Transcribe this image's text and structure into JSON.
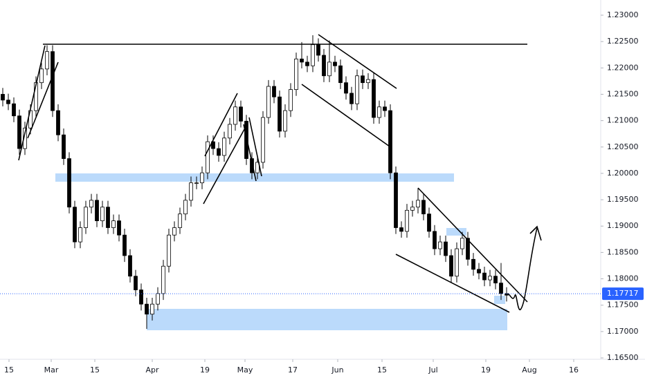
{
  "chart_data": {
    "type": "candlestick",
    "x": [
      1,
      3,
      5,
      7,
      9,
      11,
      13,
      15,
      17,
      19,
      21,
      23,
      25,
      27,
      29,
      31,
      33,
      35,
      37,
      39,
      41,
      43,
      45,
      47,
      49,
      51,
      53,
      55,
      57,
      59,
      61,
      63,
      65,
      67,
      69,
      71,
      73,
      75,
      77,
      79,
      81,
      83,
      85,
      87,
      89,
      91,
      93,
      95,
      97,
      99,
      101,
      103,
      105,
      107,
      109,
      111,
      113,
      115,
      117,
      119,
      121,
      123,
      125,
      127,
      129,
      131,
      133,
      135,
      137,
      139,
      141,
      143,
      145,
      147,
      149,
      151,
      153,
      155,
      157,
      159,
      161,
      163,
      165,
      167,
      169,
      171,
      173,
      175,
      177,
      179,
      181,
      183
    ],
    "open": [
      1.215,
      1.2139,
      1.2132,
      1.2109,
      1.2047,
      1.2086,
      1.2119,
      1.2172,
      1.2198,
      1.2231,
      1.2119,
      1.2073,
      1.2028,
      1.1936,
      1.187,
      1.1897,
      1.1936,
      1.1949,
      1.191,
      1.1936,
      1.1897,
      1.191,
      1.1883,
      1.1844,
      1.1805,
      1.1779,
      1.1752,
      1.1733,
      1.1752,
      1.1772,
      1.1824,
      1.1883,
      1.1897,
      1.1923,
      1.1949,
      1.1982,
      1.1982,
      1.2001,
      1.206,
      1.2047,
      1.2034,
      1.2067,
      1.2093,
      1.2126,
      1.2099,
      1.2028,
      1.2001,
      1.2021,
      1.2106,
      1.2165,
      1.2145,
      1.208,
      1.2119,
      1.2159,
      1.2217,
      1.2211,
      1.2204,
      1.2244,
      1.2224,
      1.2185,
      1.2211,
      1.2204,
      1.2172,
      1.2152,
      1.2132,
      1.2185,
      1.2172,
      1.2178,
      1.2106,
      1.2126,
      1.2119,
      1.2001,
      1.1897,
      1.189,
      1.193,
      1.1936,
      1.1949,
      1.1923,
      1.189,
      1.1857,
      1.187,
      1.1844,
      1.1805,
      1.1857,
      1.1877,
      1.1837,
      1.1818,
      1.1811,
      1.1798,
      1.1805,
      1.1792,
      1.1772
    ],
    "high": [
      1.2162,
      1.2151,
      1.2144,
      1.2121,
      1.2098,
      1.2131,
      1.2184,
      1.221,
      1.2243,
      1.2243,
      1.2131,
      1.2085,
      1.204,
      1.1948,
      1.1909,
      1.1948,
      1.1961,
      1.1961,
      1.1948,
      1.1948,
      1.1922,
      1.1922,
      1.1895,
      1.1856,
      1.1817,
      1.1791,
      1.1764,
      1.1764,
      1.1784,
      1.1836,
      1.1895,
      1.1909,
      1.1935,
      1.1961,
      1.1994,
      1.1994,
      1.2013,
      1.2072,
      1.2072,
      1.2059,
      1.2079,
      1.2105,
      1.2138,
      1.2138,
      1.2111,
      1.204,
      1.2033,
      1.2118,
      1.2177,
      1.2177,
      1.2157,
      1.2131,
      1.2171,
      1.2229,
      1.2249,
      1.2223,
      1.2262,
      1.2256,
      1.2236,
      1.2252,
      1.2223,
      1.2216,
      1.2184,
      1.2164,
      1.2197,
      1.2197,
      1.219,
      1.219,
      1.2138,
      1.2138,
      1.2131,
      1.2013,
      1.1909,
      1.1942,
      1.1948,
      1.1972,
      1.1961,
      1.1935,
      1.1902,
      1.1882,
      1.1882,
      1.1856,
      1.1869,
      1.1889,
      1.1889,
      1.1849,
      1.183,
      1.1823,
      1.1817,
      1.1817,
      1.183,
      1.1784
    ],
    "low": [
      1.2127,
      1.212,
      1.2097,
      1.2035,
      1.2035,
      1.2074,
      1.2107,
      1.216,
      1.2186,
      1.2107,
      1.2061,
      1.2016,
      1.1924,
      1.1858,
      1.1858,
      1.1885,
      1.1924,
      1.1898,
      1.1898,
      1.1885,
      1.1885,
      1.1871,
      1.1832,
      1.1793,
      1.1767,
      1.174,
      1.1705,
      1.1721,
      1.174,
      1.176,
      1.1812,
      1.1871,
      1.1885,
      1.1911,
      1.1937,
      1.197,
      1.197,
      1.1989,
      1.2035,
      1.2022,
      1.2022,
      1.2055,
      1.2081,
      1.2087,
      1.2016,
      1.1989,
      1.1989,
      1.2009,
      1.2094,
      1.2133,
      1.2068,
      1.2068,
      1.2107,
      1.2147,
      1.2199,
      1.2192,
      1.2192,
      1.2212,
      1.2173,
      1.2173,
      1.2192,
      1.216,
      1.214,
      1.212,
      1.212,
      1.216,
      1.216,
      1.2094,
      1.2094,
      1.2107,
      1.1989,
      1.1885,
      1.1878,
      1.1878,
      1.1918,
      1.1924,
      1.1911,
      1.1878,
      1.1845,
      1.1845,
      1.1832,
      1.1793,
      1.1793,
      1.1845,
      1.1825,
      1.1806,
      1.1799,
      1.1786,
      1.1786,
      1.178,
      1.176,
      1.1757
    ],
    "close": [
      1.2139,
      1.2132,
      1.2109,
      1.2047,
      1.2086,
      1.2119,
      1.2172,
      1.2198,
      1.2231,
      1.2119,
      1.2073,
      1.2028,
      1.1936,
      1.187,
      1.1897,
      1.1936,
      1.1949,
      1.191,
      1.1936,
      1.1897,
      1.191,
      1.1883,
      1.1844,
      1.1805,
      1.1779,
      1.1752,
      1.1733,
      1.1752,
      1.1772,
      1.1824,
      1.1883,
      1.1897,
      1.1923,
      1.1949,
      1.1982,
      1.1982,
      1.2001,
      1.206,
      1.2047,
      1.2034,
      1.2067,
      1.2093,
      1.2126,
      1.2099,
      1.2028,
      1.2001,
      1.2021,
      1.2106,
      1.2165,
      1.2145,
      1.208,
      1.2119,
      1.2159,
      1.2217,
      1.2211,
      1.2204,
      1.2244,
      1.2224,
      1.2185,
      1.2211,
      1.2204,
      1.2172,
      1.2152,
      1.2132,
      1.2185,
      1.2172,
      1.2178,
      1.2106,
      1.2126,
      1.2119,
      1.2001,
      1.1897,
      1.189,
      1.193,
      1.1936,
      1.1949,
      1.1923,
      1.189,
      1.1857,
      1.187,
      1.1844,
      1.1805,
      1.1857,
      1.1877,
      1.1837,
      1.1818,
      1.1811,
      1.1798,
      1.1805,
      1.1792,
      1.1772,
      1.1769
    ],
    "up_color": "#ffffff",
    "down_color": "#000000",
    "xlim": [
      0,
      217
    ],
    "xticks": [
      {
        "value": 3.25,
        "label": "15"
      },
      {
        "value": 18.5,
        "label": "Mar"
      },
      {
        "value": 34.25,
        "label": "15"
      },
      {
        "value": 55,
        "label": "Apr"
      },
      {
        "value": 74,
        "label": "19"
      },
      {
        "value": 88.5,
        "label": "May"
      },
      {
        "value": 105.75,
        "label": "17"
      },
      {
        "value": 122,
        "label": "Jun"
      },
      {
        "value": 138,
        "label": "15"
      },
      {
        "value": 156.5,
        "label": "Jul"
      },
      {
        "value": 175.5,
        "label": "19"
      },
      {
        "value": 191.25,
        "label": "Aug"
      },
      {
        "value": 207.25,
        "label": "16"
      }
    ],
    "ylim": [
      1.16474,
      1.23288
    ],
    "yticks": [
      {
        "value": 1.165,
        "label": "1.16500"
      },
      {
        "value": 1.17,
        "label": "1.17000"
      },
      {
        "value": 1.175,
        "label": "1.17500"
      },
      {
        "value": 1.18,
        "label": "1.18000"
      },
      {
        "value": 1.185,
        "label": "1.18500"
      },
      {
        "value": 1.19,
        "label": "1.19000"
      },
      {
        "value": 1.195,
        "label": "1.19500"
      },
      {
        "value": 1.2,
        "label": "1.20000"
      },
      {
        "value": 1.205,
        "label": "1.20500"
      },
      {
        "value": 1.21,
        "label": "1.21000"
      },
      {
        "value": 1.215,
        "label": "1.21500"
      },
      {
        "value": 1.22,
        "label": "1.22000"
      },
      {
        "value": 1.225,
        "label": "1.22500"
      },
      {
        "value": 1.23,
        "label": "1.23000"
      }
    ],
    "current_price": 1.17717,
    "current_price_color": "#2962ff",
    "grid": false
  }
}
